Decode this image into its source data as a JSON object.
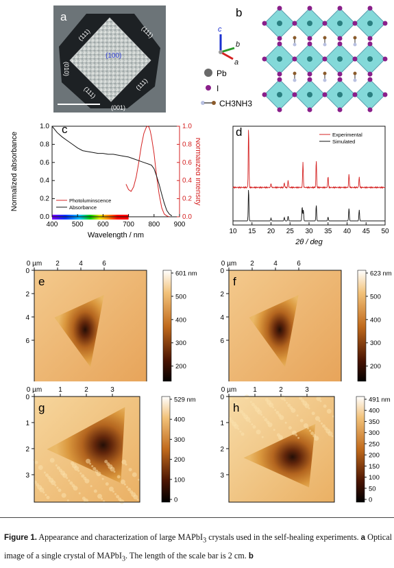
{
  "panels": {
    "a": {
      "label": "a",
      "facets": [
        "(111)",
        "(111)",
        "(111)",
        "(111)"
      ],
      "center_facet": "(100)",
      "left_facet": "(010)",
      "bottom_facet": "(001)"
    },
    "b": {
      "label": "b",
      "axes": {
        "c": "c",
        "b": "b",
        "a": "a"
      },
      "legend": [
        {
          "name": "Pb",
          "color": "#888888"
        },
        {
          "name": "I",
          "color": "#8a1f8a"
        },
        {
          "name": "CH3NH3",
          "color": "#8a5a2a"
        }
      ]
    },
    "c": {
      "label": "c"
    },
    "d": {
      "label": "d"
    },
    "e": {
      "label": "e"
    },
    "f": {
      "label": "f"
    },
    "g": {
      "label": "g"
    },
    "h": {
      "label": "h"
    }
  },
  "chart_data": [
    {
      "panel": "c",
      "type": "line",
      "xlabel": "Wavelength / nm",
      "ylabel": "Normalized absorbance",
      "ylabel_right": "Normalized intensity",
      "xlim": [
        400,
        900
      ],
      "ylim": [
        0,
        1.0
      ],
      "xticks": [
        400,
        500,
        600,
        700,
        800,
        900
      ],
      "yticks": [
        "0.0",
        "0.2",
        "0.4",
        "0.6",
        "0.8",
        "1.0"
      ],
      "series": [
        {
          "name": "Photoluminscence",
          "color": "#d42020",
          "x": [
            690,
            700,
            710,
            720,
            730,
            740,
            750,
            760,
            770,
            775,
            780,
            785,
            790,
            800,
            810,
            820,
            830,
            840,
            850,
            860
          ],
          "y": [
            0.36,
            0.3,
            0.28,
            0.33,
            0.44,
            0.6,
            0.78,
            0.92,
            0.99,
            1.0,
            0.99,
            0.95,
            0.88,
            0.7,
            0.45,
            0.25,
            0.1,
            0.03,
            0.01,
            0.0
          ]
        },
        {
          "name": "Absorbance",
          "color": "#111111",
          "x": [
            400,
            420,
            440,
            460,
            480,
            500,
            520,
            540,
            560,
            580,
            600,
            620,
            640,
            660,
            680,
            700,
            720,
            740,
            760,
            780,
            790,
            800,
            810,
            820,
            830,
            840,
            850,
            860,
            870
          ],
          "y": [
            1.0,
            0.93,
            0.88,
            0.84,
            0.8,
            0.76,
            0.73,
            0.72,
            0.71,
            0.7,
            0.7,
            0.69,
            0.69,
            0.68,
            0.67,
            0.66,
            0.64,
            0.62,
            0.6,
            0.58,
            0.57,
            0.53,
            0.45,
            0.36,
            0.25,
            0.15,
            0.07,
            0.03,
            0.01
          ]
        }
      ]
    },
    {
      "panel": "d",
      "type": "line",
      "xlabel": "2θ / deg",
      "xlim": [
        10,
        50
      ],
      "xticks": [
        10,
        15,
        20,
        25,
        30,
        35,
        40,
        45,
        50
      ],
      "series": [
        {
          "name": "Experimental",
          "color": "#d42020",
          "peaks": [
            {
              "x": 14.1,
              "h": 1.0
            },
            {
              "x": 20.0,
              "h": 0.07
            },
            {
              "x": 23.5,
              "h": 0.08
            },
            {
              "x": 24.5,
              "h": 0.12
            },
            {
              "x": 28.4,
              "h": 0.42
            },
            {
              "x": 31.9,
              "h": 0.45
            },
            {
              "x": 35.0,
              "h": 0.18
            },
            {
              "x": 40.5,
              "h": 0.22
            },
            {
              "x": 43.2,
              "h": 0.18
            }
          ]
        },
        {
          "name": "Simulated",
          "color": "#111111",
          "peaks": [
            {
              "x": 14.1,
              "h": 1.0
            },
            {
              "x": 20.0,
              "h": 0.09
            },
            {
              "x": 23.5,
              "h": 0.11
            },
            {
              "x": 24.5,
              "h": 0.15
            },
            {
              "x": 28.2,
              "h": 0.45
            },
            {
              "x": 28.5,
              "h": 0.35
            },
            {
              "x": 31.9,
              "h": 0.5
            },
            {
              "x": 35.0,
              "h": 0.12
            },
            {
              "x": 40.5,
              "h": 0.4
            },
            {
              "x": 43.2,
              "h": 0.35
            }
          ]
        }
      ]
    },
    {
      "panel": "e",
      "type": "heatmap",
      "xticks": [
        "0 µm",
        "2",
        "4",
        "6"
      ],
      "yticks": [
        "0",
        "2",
        "4",
        "6"
      ],
      "colorbar": [
        "601 nm",
        "500",
        "400",
        "300",
        "200"
      ]
    },
    {
      "panel": "f",
      "type": "heatmap",
      "xticks": [
        "0 µm",
        "2",
        "4",
        "6"
      ],
      "yticks": [
        "0",
        "2",
        "4",
        "6"
      ],
      "colorbar": [
        "623 nm",
        "500",
        "400",
        "300",
        "200"
      ]
    },
    {
      "panel": "g",
      "type": "heatmap",
      "xticks": [
        "0 µm",
        "1",
        "2",
        "3"
      ],
      "yticks": [
        "0",
        "1",
        "2",
        "3"
      ],
      "colorbar": [
        "529 nm",
        "400",
        "300",
        "200",
        "100",
        "0"
      ]
    },
    {
      "panel": "h",
      "type": "heatmap",
      "xticks": [
        "0 µm",
        "1",
        "2",
        "3"
      ],
      "yticks": [
        "0",
        "1",
        "2",
        "3"
      ],
      "colorbar": [
        "491 nm",
        "400",
        "350",
        "300",
        "250",
        "200",
        "150",
        "100",
        "50",
        "0"
      ]
    }
  ],
  "caption": {
    "figure_label": "Figure 1.",
    "text_1": " Appearance and characterization of large MAPbI",
    "sub_1": "3",
    "text_2": " crystals used in the self-healing experiments.  ",
    "a_label": "a",
    "text_3": " Optical image of a single crystal of MAPbI",
    "sub_2": "3",
    "text_4": ". The length of the scale bar is 2 cm. ",
    "b_label": "b"
  }
}
